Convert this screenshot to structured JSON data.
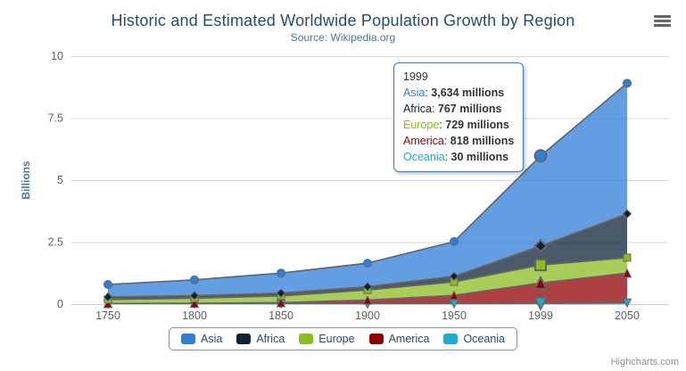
{
  "chart_data": {
    "type": "area",
    "stacking": "normal",
    "title": "Historic and Estimated Worldwide Population Growth by Region",
    "subtitle": "Source: Wikipedia.org",
    "ylabel": "Billions",
    "categories": [
      "1750",
      "1800",
      "1850",
      "1900",
      "1950",
      "1999",
      "2050"
    ],
    "yticks": [
      0,
      2.5,
      5,
      7.5,
      10
    ],
    "ylim": [
      0,
      10
    ],
    "grid": true,
    "legend_position": "bottom",
    "values_unit": "millions",
    "hover_category": "1999",
    "hover_index": 5,
    "line_color": "#666666",
    "fill_opacity": 0.75,
    "grid_color": "#d8d8d8",
    "axis_line_color": "#c0d0e0",
    "axis_label_color": "#606060",
    "series": [
      {
        "name": "Asia",
        "color": "#2f7ed8",
        "marker": "circle",
        "values": [
          502,
          635,
          809,
          947,
          1402,
          3634,
          5268
        ]
      },
      {
        "name": "Africa",
        "color": "#0d233a",
        "marker": "diamond",
        "values": [
          106,
          107,
          111,
          133,
          221,
          767,
          1766
        ]
      },
      {
        "name": "Europe",
        "color": "#8bbc21",
        "marker": "square",
        "values": [
          163,
          203,
          276,
          408,
          547,
          729,
          628
        ]
      },
      {
        "name": "America",
        "color": "#910000",
        "marker": "triangle-up",
        "values": [
          18,
          31,
          54,
          156,
          339,
          818,
          1201
        ]
      },
      {
        "name": "Oceania",
        "color": "#1aadce",
        "marker": "triangle-down",
        "values": [
          2,
          2,
          2,
          6,
          13,
          30,
          46
        ]
      }
    ]
  },
  "tooltip": {
    "year": "1999",
    "border_color": "#2f7ed8",
    "rows": [
      {
        "name": "Asia",
        "color": "#2f7ed8",
        "value": "3,634 millions"
      },
      {
        "name": "Africa",
        "color": "#0d233a",
        "value": "767 millions"
      },
      {
        "name": "Europe",
        "color": "#8bbc21",
        "value": "729 millions"
      },
      {
        "name": "America",
        "color": "#910000",
        "value": "818 millions"
      },
      {
        "name": "Oceania",
        "color": "#1aadce",
        "value": "30 millions"
      }
    ]
  },
  "export_menu": {
    "icon": "hamburger-menu-icon"
  },
  "credits": {
    "label": "Highcharts.com"
  }
}
